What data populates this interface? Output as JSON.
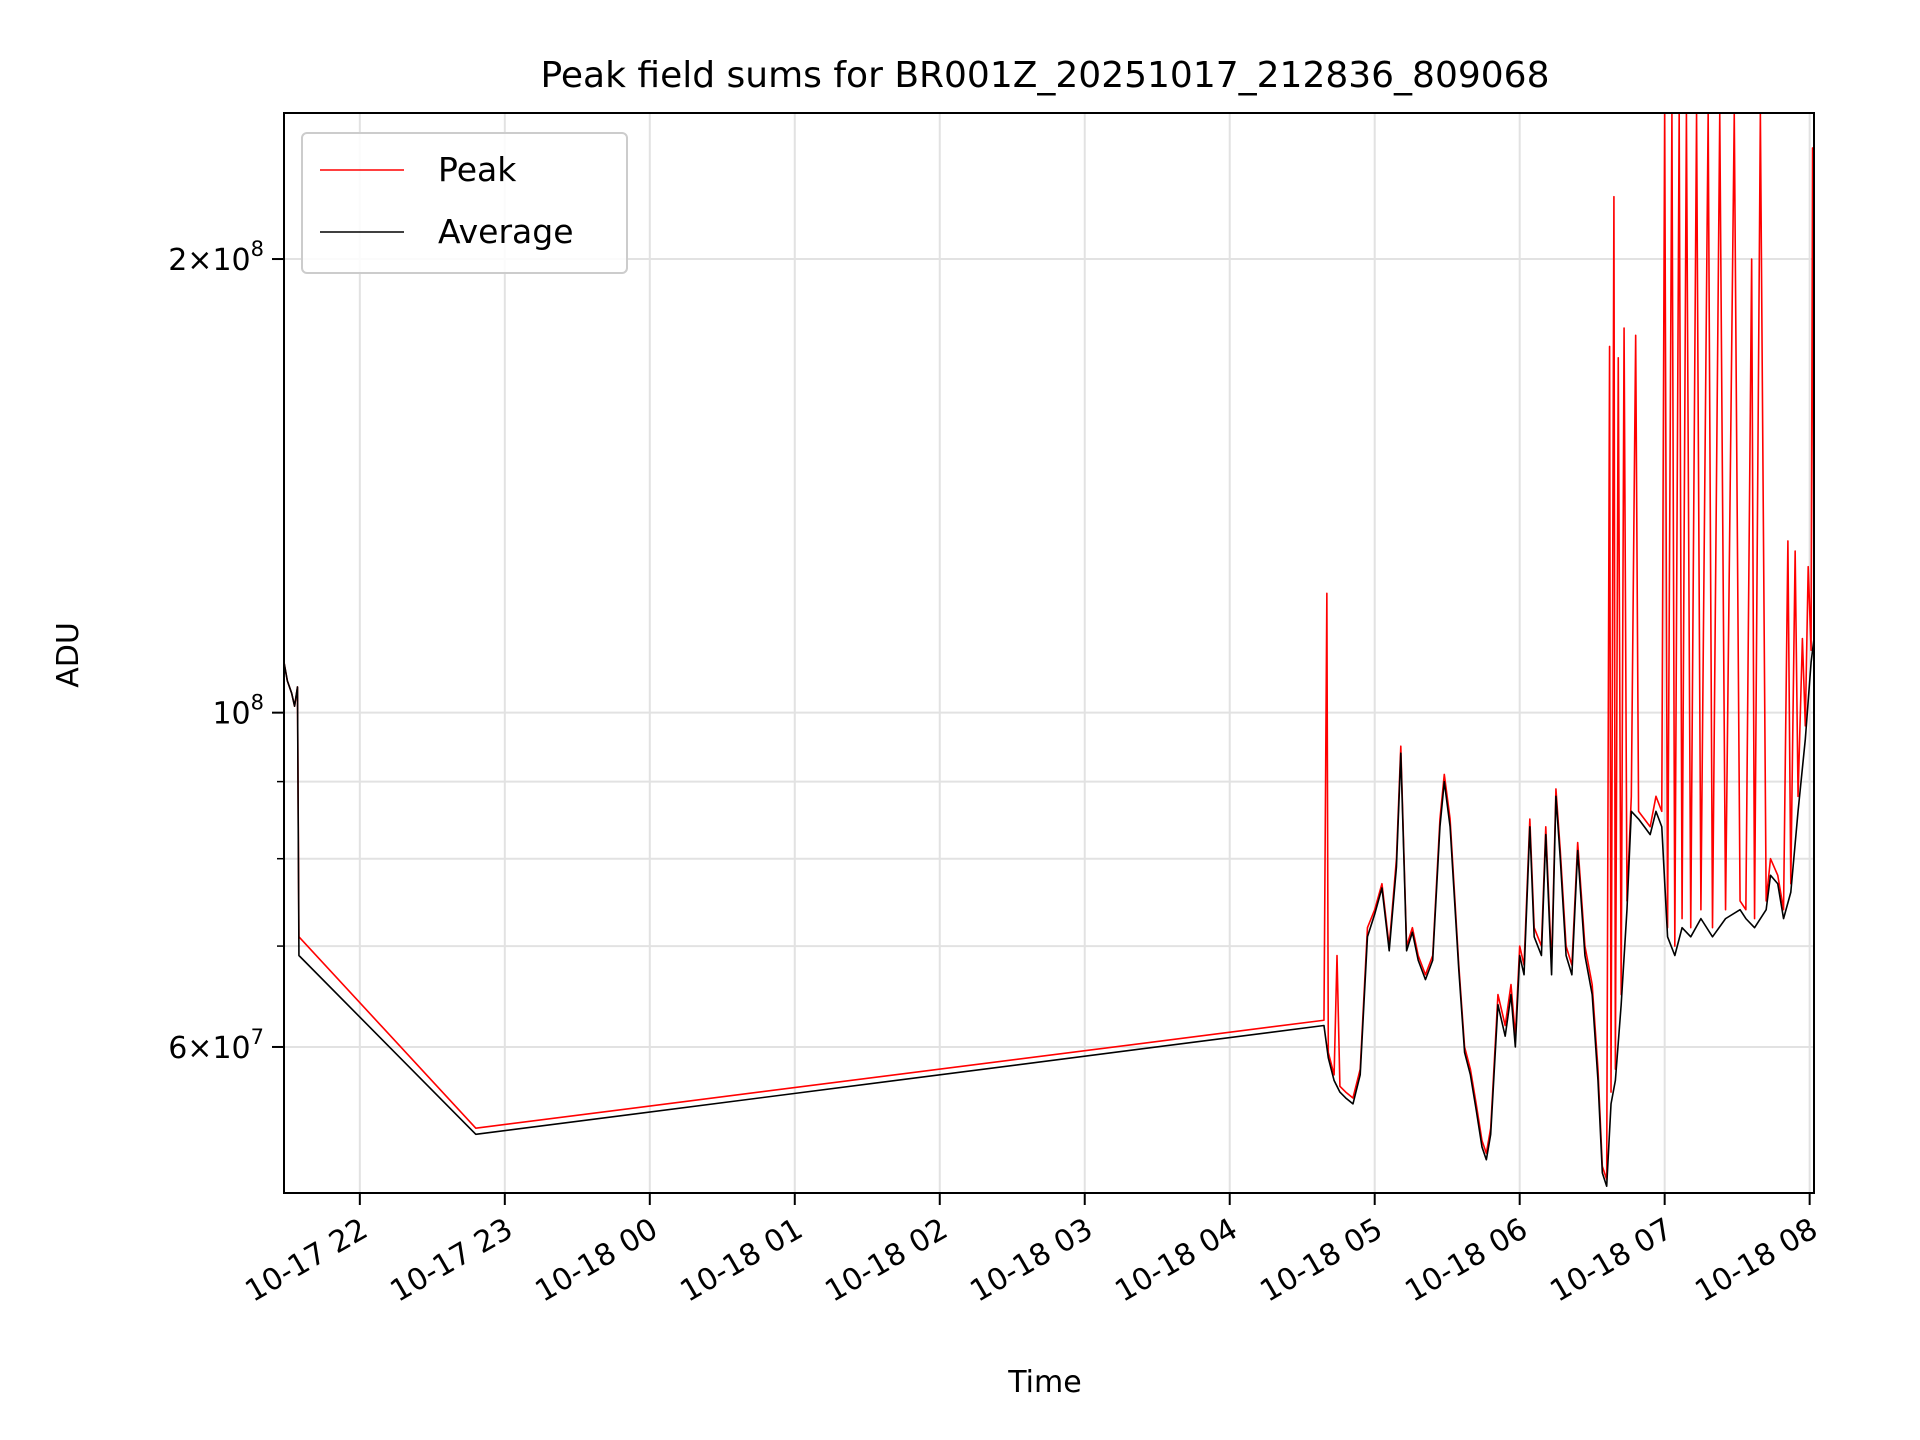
{
  "chart_data": {
    "type": "line",
    "title": "Peak field sums for BR001Z_20251017_212836_809068",
    "xlabel": "Time",
    "ylabel": "ADU",
    "yscale": "log",
    "ylim": [
      48000000,
      250000000
    ],
    "xlim_hours": [
      21.477,
      32.03
    ],
    "grid": true,
    "legend_position": "top-left",
    "x_ticks": [
      {
        "label": "10-17 22",
        "hour": 22
      },
      {
        "label": "10-17 23",
        "hour": 23
      },
      {
        "label": "10-18 00",
        "hour": 24
      },
      {
        "label": "10-18 01",
        "hour": 25
      },
      {
        "label": "10-18 02",
        "hour": 26
      },
      {
        "label": "10-18 03",
        "hour": 27
      },
      {
        "label": "10-18 04",
        "hour": 28
      },
      {
        "label": "10-18 05",
        "hour": 29
      },
      {
        "label": "10-18 06",
        "hour": 30
      },
      {
        "label": "10-18 07",
        "hour": 31
      },
      {
        "label": "10-18 08",
        "hour": 32
      }
    ],
    "y_major_ticks": [
      {
        "value": 60000000,
        "mantissa": "6",
        "exponent": "7"
      },
      {
        "value": 100000000,
        "mantissa": "",
        "exponent": "8"
      },
      {
        "value": 200000000,
        "mantissa": "2",
        "exponent": "8"
      }
    ],
    "y_minor_ticks": [
      70000000,
      80000000,
      90000000
    ],
    "series": [
      {
        "name": "Peak",
        "color": "#ff0000",
        "points": [
          [
            21.477,
            108000000
          ],
          [
            21.5,
            105000000
          ],
          [
            21.53,
            103000000
          ],
          [
            21.55,
            101000000
          ],
          [
            21.57,
            104000000
          ],
          [
            21.58,
            71000000
          ],
          [
            22.8,
            53000000
          ],
          [
            28.65,
            62500000
          ],
          [
            28.67,
            120000000
          ],
          [
            28.68,
            59500000
          ],
          [
            28.72,
            57500000
          ],
          [
            28.74,
            69000000
          ],
          [
            28.76,
            56500000
          ],
          [
            28.8,
            56000000
          ],
          [
            28.85,
            55500000
          ],
          [
            28.9,
            58000000
          ],
          [
            28.95,
            72000000
          ],
          [
            29.0,
            74000000
          ],
          [
            29.05,
            77000000
          ],
          [
            29.1,
            70000000
          ],
          [
            29.15,
            80000000
          ],
          [
            29.18,
            95000000
          ],
          [
            29.22,
            70000000
          ],
          [
            29.26,
            72000000
          ],
          [
            29.3,
            69000000
          ],
          [
            29.35,
            67000000
          ],
          [
            29.4,
            69000000
          ],
          [
            29.45,
            85000000
          ],
          [
            29.48,
            91000000
          ],
          [
            29.52,
            85000000
          ],
          [
            29.58,
            68000000
          ],
          [
            29.62,
            60000000
          ],
          [
            29.66,
            58000000
          ],
          [
            29.7,
            55000000
          ],
          [
            29.74,
            52000000
          ],
          [
            29.77,
            51000000
          ],
          [
            29.8,
            53000000
          ],
          [
            29.85,
            65000000
          ],
          [
            29.9,
            62000000
          ],
          [
            29.94,
            66000000
          ],
          [
            29.97,
            61000000
          ],
          [
            30.0,
            70000000
          ],
          [
            30.03,
            68000000
          ],
          [
            30.07,
            85000000
          ],
          [
            30.1,
            72000000
          ],
          [
            30.15,
            70000000
          ],
          [
            30.18,
            84000000
          ],
          [
            30.22,
            68000000
          ],
          [
            30.25,
            89000000
          ],
          [
            30.28,
            81000000
          ],
          [
            30.32,
            70000000
          ],
          [
            30.36,
            68000000
          ],
          [
            30.4,
            82000000
          ],
          [
            30.45,
            70000000
          ],
          [
            30.5,
            66000000
          ],
          [
            30.54,
            58000000
          ],
          [
            30.57,
            50000000
          ],
          [
            30.6,
            49000000
          ],
          [
            30.62,
            175000000
          ],
          [
            30.63,
            56000000
          ],
          [
            30.65,
            220000000
          ],
          [
            30.66,
            58000000
          ],
          [
            30.68,
            172000000
          ],
          [
            30.7,
            65000000
          ],
          [
            30.72,
            180000000
          ],
          [
            30.74,
            75000000
          ],
          [
            30.77,
            88000000
          ],
          [
            30.8,
            178000000
          ],
          [
            30.82,
            86000000
          ],
          [
            30.86,
            85000000
          ],
          [
            30.9,
            84000000
          ],
          [
            30.94,
            88000000
          ],
          [
            30.98,
            86000000
          ],
          [
            31.0,
            250000000
          ],
          [
            31.02,
            72000000
          ],
          [
            31.05,
            250000000
          ],
          [
            31.07,
            70000000
          ],
          [
            31.1,
            250000000
          ],
          [
            31.12,
            73000000
          ],
          [
            31.15,
            250000000
          ],
          [
            31.18,
            72000000
          ],
          [
            31.22,
            250000000
          ],
          [
            31.25,
            74000000
          ],
          [
            31.3,
            250000000
          ],
          [
            31.33,
            72000000
          ],
          [
            31.38,
            250000000
          ],
          [
            31.42,
            74000000
          ],
          [
            31.48,
            250000000
          ],
          [
            31.52,
            75000000
          ],
          [
            31.56,
            74000000
          ],
          [
            31.6,
            200000000
          ],
          [
            31.62,
            73000000
          ],
          [
            31.66,
            250000000
          ],
          [
            31.7,
            75000000
          ],
          [
            31.73,
            80000000
          ],
          [
            31.78,
            78000000
          ],
          [
            31.82,
            74000000
          ],
          [
            31.85,
            130000000
          ],
          [
            31.87,
            77000000
          ],
          [
            31.9,
            128000000
          ],
          [
            31.92,
            88000000
          ],
          [
            31.95,
            112000000
          ],
          [
            31.97,
            98000000
          ],
          [
            31.99,
            125000000
          ],
          [
            32.01,
            110000000
          ],
          [
            32.02,
            237000000
          ],
          [
            32.03,
            115000000
          ]
        ]
      },
      {
        "name": "Average",
        "color": "#000000",
        "points": [
          [
            21.477,
            108000000
          ],
          [
            21.5,
            105000000
          ],
          [
            21.53,
            103000000
          ],
          [
            21.55,
            101000000
          ],
          [
            21.57,
            104000000
          ],
          [
            21.58,
            69000000
          ],
          [
            22.8,
            52500000
          ],
          [
            28.65,
            62000000
          ],
          [
            28.68,
            59000000
          ],
          [
            28.72,
            57000000
          ],
          [
            28.76,
            56000000
          ],
          [
            28.8,
            55500000
          ],
          [
            28.85,
            55000000
          ],
          [
            28.9,
            57500000
          ],
          [
            28.95,
            71000000
          ],
          [
            29.0,
            73500000
          ],
          [
            29.05,
            76500000
          ],
          [
            29.1,
            69500000
          ],
          [
            29.15,
            79000000
          ],
          [
            29.18,
            94000000
          ],
          [
            29.22,
            69500000
          ],
          [
            29.26,
            71500000
          ],
          [
            29.3,
            68500000
          ],
          [
            29.35,
            66500000
          ],
          [
            29.4,
            68500000
          ],
          [
            29.45,
            84000000
          ],
          [
            29.48,
            90000000
          ],
          [
            29.52,
            84000000
          ],
          [
            29.58,
            67500000
          ],
          [
            29.62,
            59500000
          ],
          [
            29.66,
            57500000
          ],
          [
            29.7,
            54500000
          ],
          [
            29.74,
            51500000
          ],
          [
            29.77,
            50500000
          ],
          [
            29.8,
            52500000
          ],
          [
            29.85,
            64000000
          ],
          [
            29.9,
            61000000
          ],
          [
            29.94,
            65000000
          ],
          [
            29.97,
            60000000
          ],
          [
            30.0,
            69000000
          ],
          [
            30.03,
            67000000
          ],
          [
            30.07,
            84000000
          ],
          [
            30.1,
            71000000
          ],
          [
            30.15,
            69000000
          ],
          [
            30.18,
            83000000
          ],
          [
            30.22,
            67000000
          ],
          [
            30.25,
            88000000
          ],
          [
            30.28,
            80000000
          ],
          [
            30.32,
            69000000
          ],
          [
            30.36,
            67000000
          ],
          [
            30.4,
            81000000
          ],
          [
            30.45,
            69000000
          ],
          [
            30.5,
            65000000
          ],
          [
            30.54,
            57000000
          ],
          [
            30.57,
            49500000
          ],
          [
            30.6,
            48500000
          ],
          [
            30.63,
            55000000
          ],
          [
            30.66,
            57000000
          ],
          [
            30.7,
            64000000
          ],
          [
            30.74,
            74000000
          ],
          [
            30.77,
            86000000
          ],
          [
            30.82,
            85000000
          ],
          [
            30.86,
            84000000
          ],
          [
            30.9,
            83000000
          ],
          [
            30.94,
            86000000
          ],
          [
            30.98,
            84000000
          ],
          [
            31.02,
            71000000
          ],
          [
            31.07,
            69000000
          ],
          [
            31.12,
            72000000
          ],
          [
            31.18,
            71000000
          ],
          [
            31.25,
            73000000
          ],
          [
            31.33,
            71000000
          ],
          [
            31.42,
            73000000
          ],
          [
            31.52,
            74000000
          ],
          [
            31.56,
            73000000
          ],
          [
            31.62,
            72000000
          ],
          [
            31.7,
            74000000
          ],
          [
            31.73,
            78000000
          ],
          [
            31.78,
            77000000
          ],
          [
            31.82,
            73000000
          ],
          [
            31.87,
            76000000
          ],
          [
            31.92,
            86000000
          ],
          [
            31.97,
            96000000
          ],
          [
            32.01,
            108000000
          ],
          [
            32.03,
            112000000
          ]
        ]
      }
    ]
  }
}
